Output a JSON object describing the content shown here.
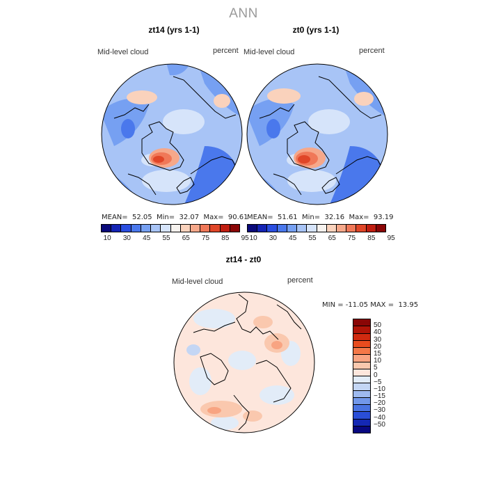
{
  "title": "ANN",
  "panels": [
    {
      "title": "zt14 (yrs 1-1)",
      "field_label": "Mid-level cloud",
      "unit_label": "percent",
      "stats": "MEAN=  52.05  Min=  32.07  Max=  90.61"
    },
    {
      "title": "zt0 (yrs 1-1)",
      "field_label": "Mid-level cloud",
      "unit_label": "percent",
      "stats": "MEAN=  51.61  Min=  32.16  Max=  93.19"
    }
  ],
  "abs_colorbar": {
    "colors": [
      "#0a0a7a",
      "#1424b4",
      "#2a4ee0",
      "#4a78ec",
      "#76a0f2",
      "#a8c4f6",
      "#d6e4fa",
      "#f6f2ee",
      "#fad2bc",
      "#f6a88a",
      "#f07858",
      "#e04628",
      "#c01e10",
      "#8a0606"
    ],
    "tick_labels": [
      "10",
      "30",
      "45",
      "55",
      "65",
      "75",
      "85",
      "95"
    ]
  },
  "diff_panel": {
    "title": "zt14 - zt0",
    "field_label": "Mid-level cloud",
    "unit_label": "percent",
    "stats": "MIN = -11.05 MAX =  13.95"
  },
  "diff_colorbar": {
    "colors": [
      "#8a0606",
      "#b01408",
      "#d02a10",
      "#e84c1e",
      "#f47848",
      "#f8a482",
      "#fac8ae",
      "#fde6dc",
      "#e2ecf8",
      "#c4d6f4",
      "#9ebaf0",
      "#7298ea",
      "#4a74e2",
      "#2a4ed8",
      "#1428b4",
      "#080880"
    ],
    "tick_labels": [
      "50",
      "40",
      "30",
      "20",
      "15",
      "10",
      "5",
      "0",
      "−5",
      "−10",
      "−15",
      "−20",
      "−30",
      "−40",
      "−50"
    ]
  }
}
